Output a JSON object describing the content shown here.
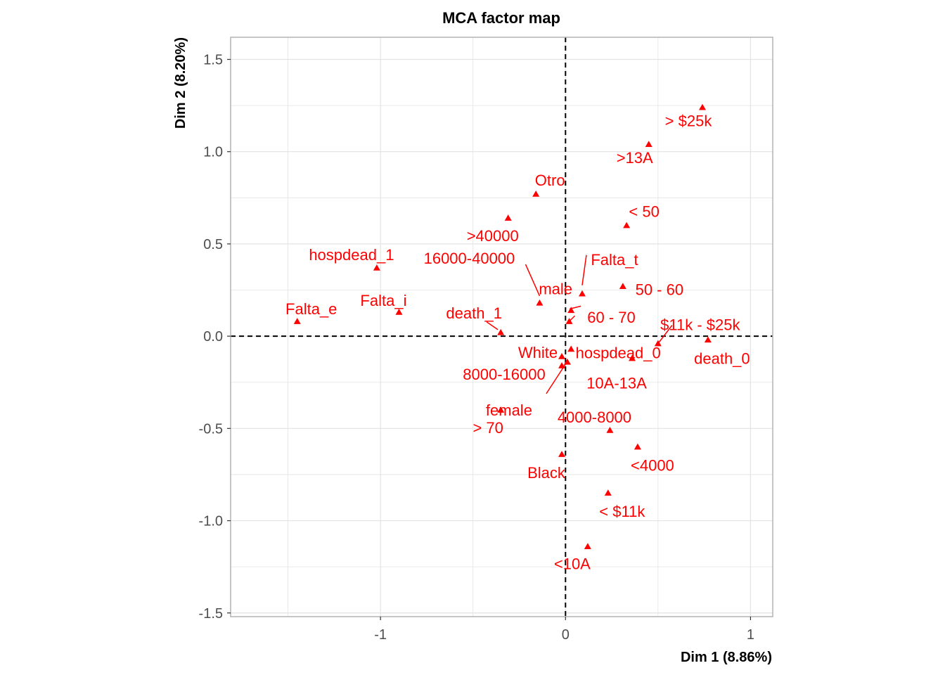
{
  "chart_data": {
    "type": "scatter",
    "title": "MCA factor map",
    "xlabel": "Dim 1 (8.86%)",
    "ylabel": "Dim 2 (8.20%)",
    "xlim": [
      -1.81,
      1.12
    ],
    "ylim": [
      -1.52,
      1.62
    ],
    "xticks": [
      -1,
      0,
      1
    ],
    "yticks": [
      -1.5,
      -1.0,
      -0.5,
      0.0,
      0.5,
      1.0,
      1.5
    ],
    "x_tick_labels": [
      "-1",
      "0",
      "1"
    ],
    "y_tick_labels": [
      "-1.5",
      "-1.0",
      "-0.5",
      "0.0",
      "0.5",
      "1.0",
      "1.5"
    ],
    "grid": true,
    "reference_lines": {
      "x": 0,
      "y": 0
    },
    "marker": "triangle",
    "color": "#ff0000",
    "points": [
      {
        "label": "> $25k",
        "x": 0.74,
        "y": 1.24
      },
      {
        "label": ">13A",
        "x": 0.45,
        "y": 1.04
      },
      {
        "label": "Otro",
        "x": -0.16,
        "y": 0.77
      },
      {
        "label": ">40000",
        "x": -0.31,
        "y": 0.64
      },
      {
        "label": "< 50",
        "x": 0.33,
        "y": 0.6
      },
      {
        "label": "hospdead_1",
        "x": -1.02,
        "y": 0.37
      },
      {
        "label": "16000-40000",
        "x": -0.14,
        "y": 0.18
      },
      {
        "label": "Falta_t",
        "x": 0.09,
        "y": 0.23
      },
      {
        "label": "50 - 60",
        "x": 0.31,
        "y": 0.27
      },
      {
        "label": "male",
        "x": 0.03,
        "y": 0.14
      },
      {
        "label": "Falta_i",
        "x": -0.9,
        "y": 0.13
      },
      {
        "label": "Falta_e",
        "x": -1.45,
        "y": 0.08
      },
      {
        "label": "death_1",
        "x": -0.35,
        "y": 0.02
      },
      {
        "label": "60 - 70",
        "x": 0.02,
        "y": 0.08
      },
      {
        "label": "$11k - $25k",
        "x": 0.5,
        "y": -0.04
      },
      {
        "label": "death_0",
        "x": 0.77,
        "y": -0.02
      },
      {
        "label": "White",
        "x": -0.02,
        "y": -0.11
      },
      {
        "label": "hospdead_0",
        "x": 0.03,
        "y": -0.07
      },
      {
        "label": "8000-16000",
        "x": -0.02,
        "y": -0.16
      },
      {
        "label": "10A-13A",
        "x": 0.36,
        "y": -0.12
      },
      {
        "label": "female",
        "x": 0.01,
        "y": -0.14
      },
      {
        "label": "> 70",
        "x": -0.35,
        "y": -0.4
      },
      {
        "label": "4000-8000",
        "x": 0.24,
        "y": -0.51
      },
      {
        "label": "<4000",
        "x": 0.39,
        "y": -0.6
      },
      {
        "label": "Black",
        "x": -0.02,
        "y": -0.64
      },
      {
        "label": "< $11k",
        "x": 0.23,
        "y": -0.85
      },
      {
        "label": "<10A",
        "x": 0.12,
        "y": -1.14
      }
    ]
  }
}
